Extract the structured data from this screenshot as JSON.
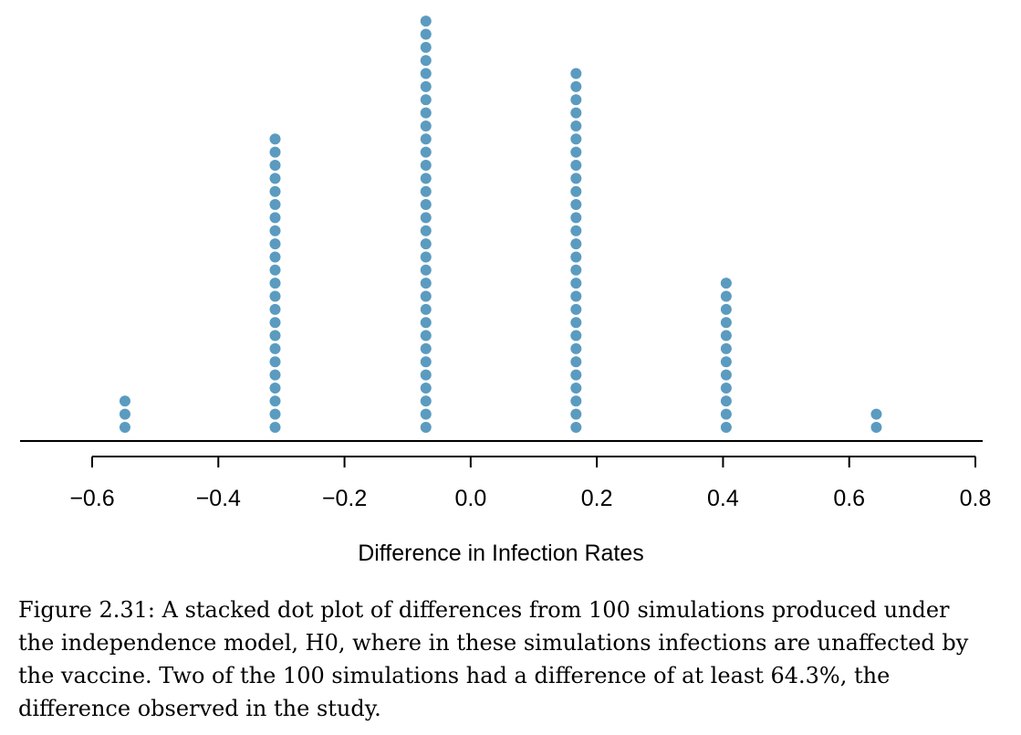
{
  "chart_data": {
    "type": "scatter",
    "subtype": "stacked-dot-plot",
    "xlabel": "Difference in Infection Rates",
    "ylabel": "",
    "xlim": [
      -0.6,
      0.8
    ],
    "x_ticks": [
      -0.6,
      -0.4,
      -0.2,
      0.0,
      0.2,
      0.4,
      0.6,
      0.8
    ],
    "x_tick_labels": [
      "−0.6",
      "−0.4",
      "−0.2",
      "0.0",
      "0.2",
      "0.4",
      "0.6",
      "0.8"
    ],
    "grid": false,
    "dot_color": "#5b9bc0",
    "stacks": [
      {
        "x": -0.548,
        "count": 3
      },
      {
        "x": -0.31,
        "count": 23
      },
      {
        "x": -0.071,
        "count": 32
      },
      {
        "x": 0.167,
        "count": 28
      },
      {
        "x": 0.405,
        "count": 12
      },
      {
        "x": 0.643,
        "count": 2
      }
    ]
  },
  "caption": "Figure 2.31: A stacked dot plot of differences from 100 simulations produced under the independence model, H0, where in these simulations infections are unaffected by the vaccine. Two of the 100 simulations had a difference of at least 64.3%, the difference observed in the study."
}
